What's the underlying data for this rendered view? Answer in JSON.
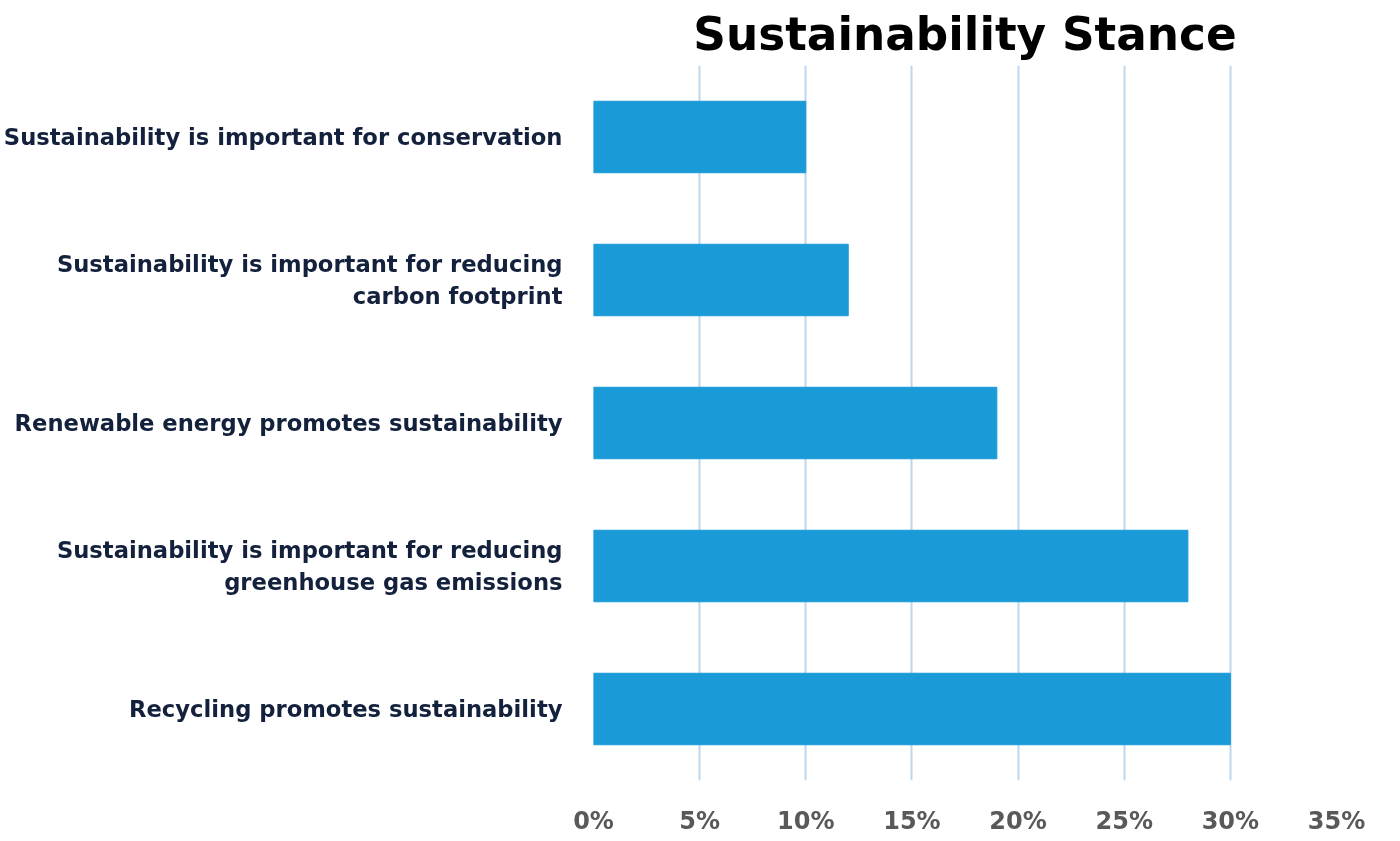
{
  "chart_data": {
    "type": "bar",
    "orientation": "horizontal",
    "title": "Sustainability Stance",
    "categories": [
      "Sustainability is important for conservation",
      "Sustainability is important for reducing carbon footprint",
      "Renewable energy promotes sustainability",
      "Sustainability is important for reducing greenhouse gas emissions",
      "Recycling promotes sustainability"
    ],
    "values": [
      10,
      12,
      19,
      28,
      30
    ],
    "color": "#1a9ad6",
    "xlim": [
      0,
      35
    ],
    "xticks": [
      {
        "value": 0,
        "label": "0%"
      },
      {
        "value": 5,
        "label": "5%"
      },
      {
        "value": 10,
        "label": "10%"
      },
      {
        "value": 15,
        "label": "15%"
      },
      {
        "value": 20,
        "label": "20%"
      },
      {
        "value": 25,
        "label": "25%"
      },
      {
        "value": 30,
        "label": "30%"
      },
      {
        "value": 35,
        "label": "35%"
      }
    ],
    "grid": "x"
  }
}
